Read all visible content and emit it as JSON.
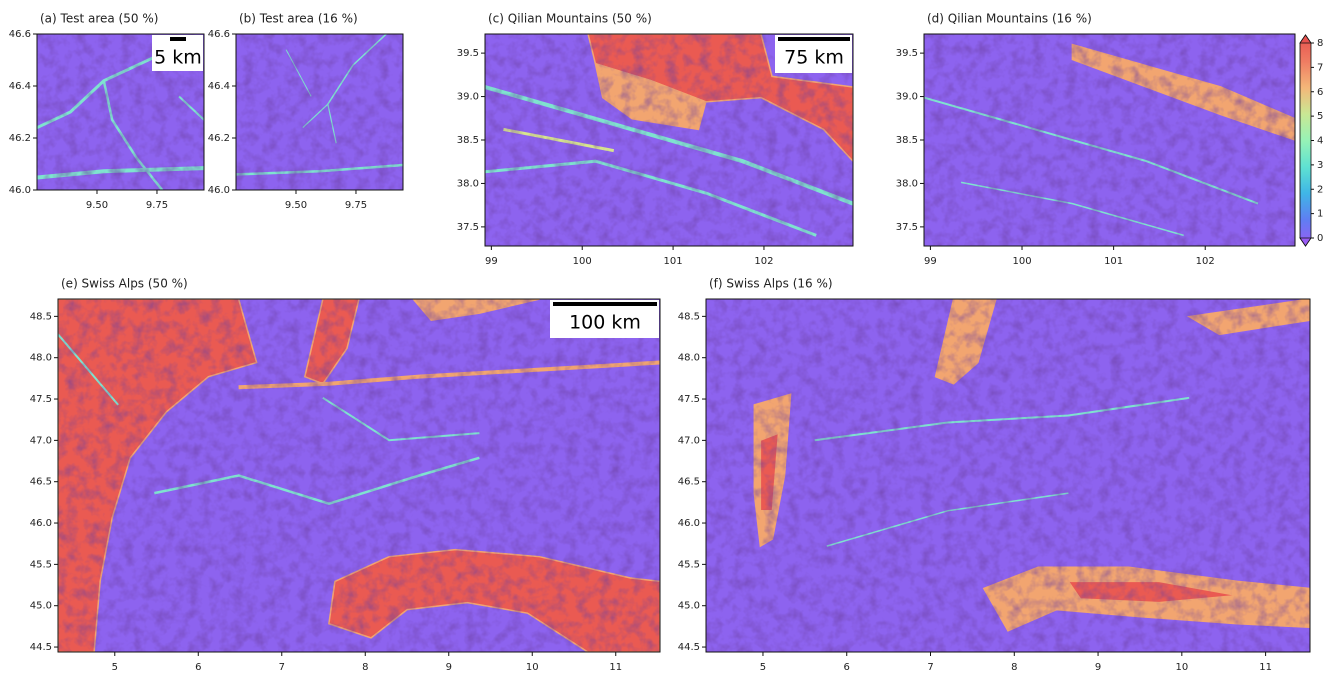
{
  "figure": {
    "panels": [
      {
        "title": "(a) Test area (50 %)",
        "xlim": [
          9.25,
          9.946
        ],
        "ylim": [
          46.0,
          46.6
        ],
        "xticks": [
          {
            "value": 9.5,
            "label": "9.50"
          },
          {
            "value": 9.75,
            "label": "9.75"
          }
        ],
        "yticks": [
          {
            "value": 46.0,
            "label": "46.0"
          },
          {
            "value": 46.2,
            "label": "46.2"
          },
          {
            "value": 46.4,
            "label": "46.4"
          },
          {
            "value": 46.6,
            "label": "46.6"
          }
        ],
        "scale_bar": "5 km"
      },
      {
        "title": "(b) Test area (16 %)",
        "xlim": [
          9.25,
          9.946
        ],
        "ylim": [
          46.0,
          46.6
        ],
        "xticks": [
          {
            "value": 9.5,
            "label": "9.50"
          },
          {
            "value": 9.75,
            "label": "9.75"
          }
        ],
        "yticks": [
          {
            "value": 46.0,
            "label": "46.0"
          },
          {
            "value": 46.2,
            "label": "46.2"
          },
          {
            "value": 46.4,
            "label": "46.4"
          },
          {
            "value": 46.6,
            "label": "46.6"
          }
        ]
      },
      {
        "title": "(c) Qilian Mountains (50 %)",
        "xlim": [
          98.93,
          102.98
        ],
        "ylim": [
          37.28,
          39.72
        ],
        "xticks": [
          99,
          100,
          101,
          102
        ],
        "yticks": [
          37.5,
          {
            "value": 38,
            "label": "38.0"
          },
          38.5,
          {
            "value": 39,
            "label": "39.0"
          },
          39.5
        ],
        "scale_bar": "75 km"
      },
      {
        "title": "(d) Qilian Mountains (16 %)",
        "xlim": [
          98.93,
          102.98
        ],
        "ylim": [
          37.28,
          39.72
        ],
        "xticks": [
          99,
          100,
          101,
          102
        ],
        "yticks": [
          37.5,
          {
            "value": 38,
            "label": "38.0"
          },
          38.5,
          {
            "value": 39,
            "label": "39.0"
          },
          39.5
        ]
      },
      {
        "title": "(e) Swiss Alps (50 %)",
        "xlim": [
          4.32,
          11.53
        ],
        "ylim": [
          44.44,
          48.71
        ],
        "xticks": [
          5,
          6,
          7,
          8,
          9,
          10,
          11
        ],
        "yticks": [
          44.5,
          {
            "value": 45,
            "label": "45.0"
          },
          45.5,
          {
            "value": 46,
            "label": "46.0"
          },
          46.5,
          {
            "value": 47,
            "label": "47.0"
          },
          47.5,
          {
            "value": 48,
            "label": "48.0"
          },
          48.5
        ],
        "scale_bar": "100 km"
      },
      {
        "title": "(f) Swiss Alps (16 %)",
        "xlim": [
          4.32,
          11.53
        ],
        "ylim": [
          44.44,
          48.71
        ],
        "xticks": [
          5,
          6,
          7,
          8,
          9,
          10,
          11
        ],
        "yticks": [
          44.5,
          {
            "value": 45,
            "label": "45.0"
          },
          45.5,
          {
            "value": 46,
            "label": "46.0"
          },
          46.5,
          {
            "value": 47,
            "label": "47.0"
          },
          47.5,
          {
            "value": 48,
            "label": "48.0"
          },
          48.5
        ]
      }
    ],
    "colorbar": {
      "lim": [
        0,
        8
      ],
      "ticks": [
        0,
        1,
        2,
        3,
        4,
        5,
        6,
        7,
        8
      ],
      "colors": [
        "#9a5cf5",
        "#5f7ef2",
        "#3fb6e6",
        "#5fe2d2",
        "#96f2b6",
        "#c9e894",
        "#f4b779",
        "#ef7c62",
        "#e8524f"
      ]
    }
  }
}
